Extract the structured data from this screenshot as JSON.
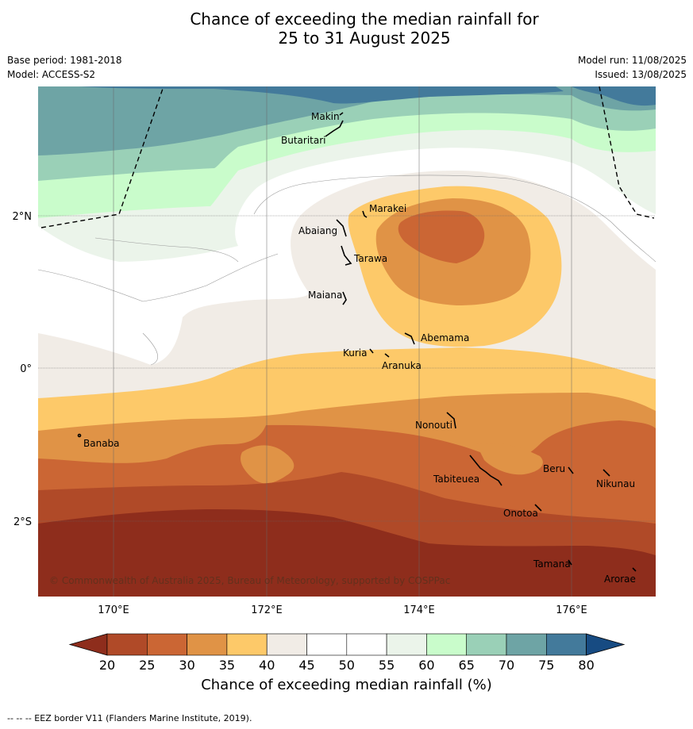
{
  "title": {
    "line1": "Chance of exceeding the median rainfall for",
    "line2": "25 to 31 August 2025"
  },
  "meta": {
    "base_period": "Base period: 1981-2018",
    "model": "Model: ACCESS-S2",
    "model_run": "Model run: 11/08/2025",
    "issued": "Issued: 13/08/2025"
  },
  "map": {
    "lon_labels": [
      "170°E",
      "172°E",
      "174°E",
      "176°E"
    ],
    "lat_labels": [
      "2°N",
      "0°",
      "2°S"
    ],
    "copyright": "© Commonwealth of Australia 2025, Bureau of Meteorology, supported by COSPPac",
    "places": [
      {
        "name": "Makin"
      },
      {
        "name": "Butaritari"
      },
      {
        "name": "Marakei"
      },
      {
        "name": "Abaiang"
      },
      {
        "name": "Tarawa"
      },
      {
        "name": "Maiana"
      },
      {
        "name": "Abemama"
      },
      {
        "name": "Kuria"
      },
      {
        "name": "Aranuka"
      },
      {
        "name": "Nonouti"
      },
      {
        "name": "Banaba"
      },
      {
        "name": "Beru"
      },
      {
        "name": "Tabiteuea"
      },
      {
        "name": "Nikunau"
      },
      {
        "name": "Onotoa"
      },
      {
        "name": "Tamana"
      },
      {
        "name": "Arorae"
      }
    ]
  },
  "colorbar": {
    "ticks": [
      "20",
      "25",
      "30",
      "35",
      "40",
      "45",
      "50",
      "55",
      "60",
      "65",
      "70",
      "75",
      "80"
    ],
    "colors": [
      "#b04a28",
      "#cb6634",
      "#e09346",
      "#fdc969",
      "#f1ece6",
      "#ffffff",
      "#ffffff",
      "#ebf4ea",
      "#c9fccb",
      "#9ad0b7",
      "#6ea4a5",
      "#437a9b"
    ],
    "under_color": "#8e2d1c",
    "over_color": "#174b82",
    "label": "Chance of exceeding median rainfall (%)"
  },
  "footer": "--  --  -- EEZ border V11 (Flanders Marine Institute, 2019)."
}
